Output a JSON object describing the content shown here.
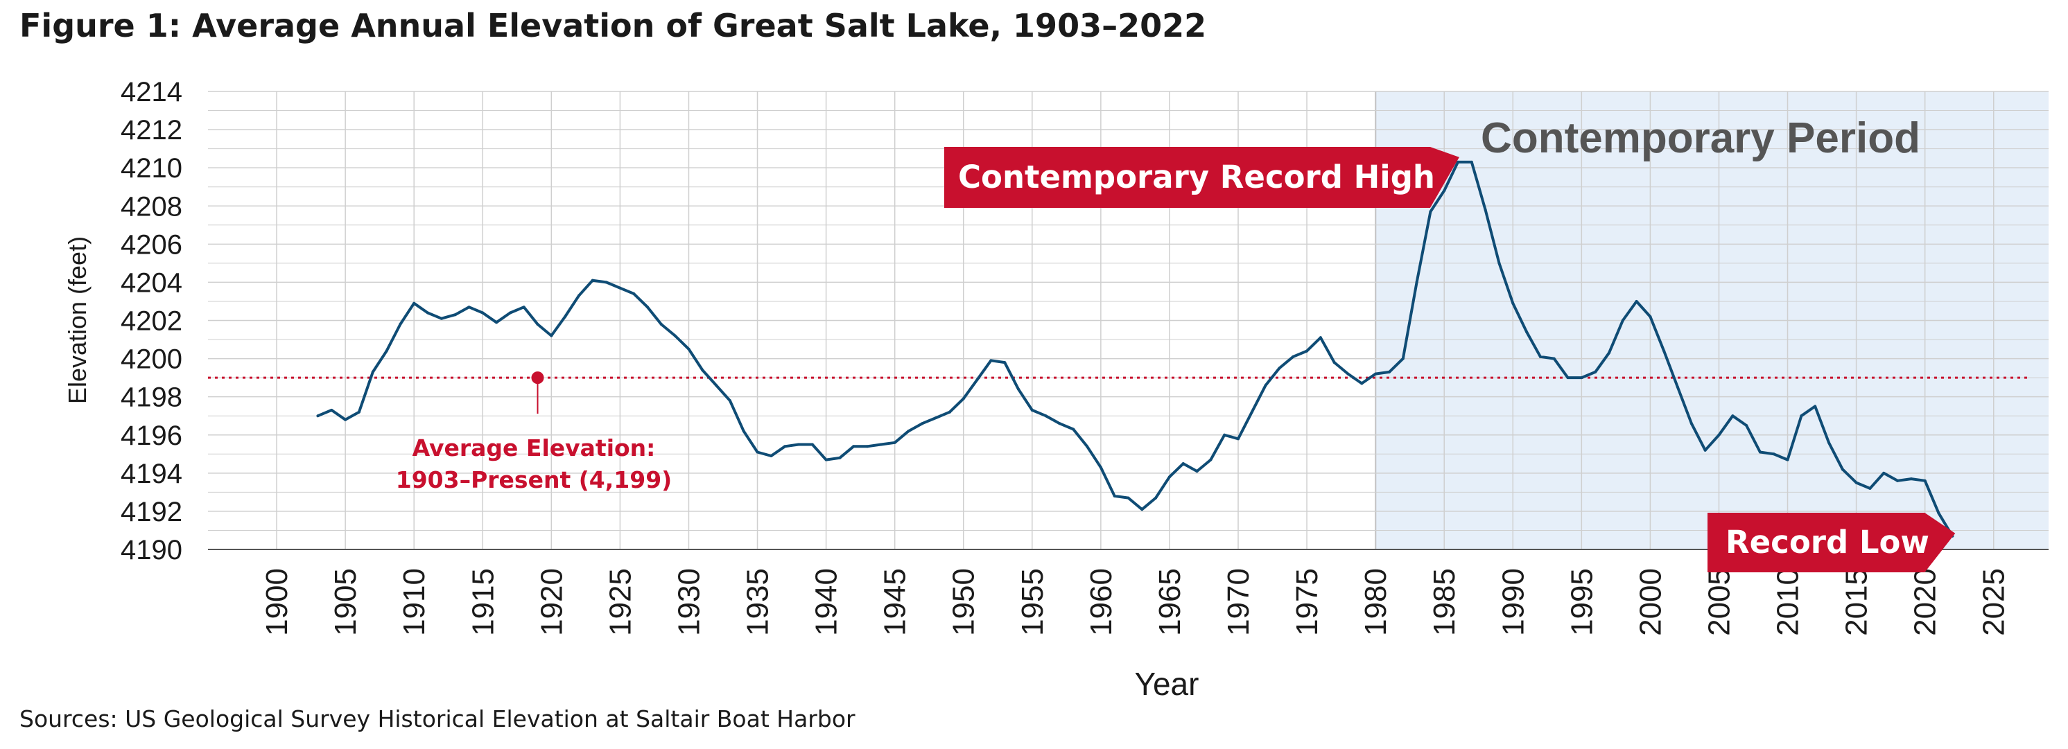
{
  "title": "Figure 1: Average Annual Elevation of Great Salt Lake, 1903–2022",
  "source": "Sources: US Geological Survey Historical Elevation at Saltair Boat Harbor",
  "colors": {
    "line": "#0f4c75",
    "accent": "#c8102e",
    "period_fill": "#e6eff9",
    "period_text": "#555555",
    "grid": "#cfcfcf"
  },
  "chart_data": {
    "type": "line",
    "title": "Figure 1: Average Annual Elevation of Great Salt Lake, 1903–2022",
    "xlabel": "Year",
    "ylabel": "Elevation (feet)",
    "xlim": [
      1895,
      2029
    ],
    "ylim": [
      4190,
      4214
    ],
    "grid": true,
    "x_ticks": [
      1900,
      1905,
      1910,
      1915,
      1920,
      1925,
      1930,
      1935,
      1940,
      1945,
      1950,
      1955,
      1960,
      1965,
      1970,
      1975,
      1980,
      1985,
      1990,
      1995,
      2000,
      2005,
      2010,
      2015,
      2020,
      2025
    ],
    "y_ticks": [
      4190,
      4192,
      4194,
      4196,
      4198,
      4200,
      4202,
      4204,
      4206,
      4208,
      4210,
      4212,
      4214
    ],
    "series": [
      {
        "x": [
          1903,
          1904,
          1905,
          1906,
          1907,
          1908,
          1909,
          1910,
          1911,
          1912,
          1913,
          1914,
          1915,
          1916,
          1917,
          1918,
          1919,
          1920,
          1921,
          1922,
          1923,
          1924,
          1925,
          1926,
          1927,
          1928,
          1929,
          1930,
          1931,
          1932,
          1933,
          1934,
          1935,
          1936,
          1937,
          1938,
          1939,
          1940,
          1941,
          1942,
          1943,
          1944,
          1945,
          1946,
          1947,
          1948,
          1949,
          1950,
          1951,
          1952,
          1953,
          1954,
          1955,
          1956,
          1957,
          1958,
          1959,
          1960,
          1961,
          1962,
          1963,
          1964,
          1965,
          1966,
          1967,
          1968,
          1969,
          1970,
          1971,
          1972,
          1973,
          1974,
          1975,
          1976,
          1977,
          1978,
          1979,
          1980,
          1981,
          1982,
          1983,
          1984,
          1985,
          1986,
          1987,
          1988,
          1989,
          1990,
          1991,
          1992,
          1993,
          1994,
          1995,
          1996,
          1997,
          1998,
          1999,
          2000,
          2001,
          2002,
          2003,
          2004,
          2005,
          2006,
          2007,
          2008,
          2009,
          2010,
          2011,
          2012,
          2013,
          2014,
          2015,
          2016,
          2017,
          2018,
          2019,
          2020,
          2021,
          2022
        ],
        "values": [
          4197.0,
          4197.3,
          4196.8,
          4197.2,
          4199.3,
          4200.4,
          4201.8,
          4202.9,
          4202.4,
          4202.1,
          4202.3,
          4202.7,
          4202.4,
          4201.9,
          4202.4,
          4202.7,
          4201.8,
          4201.2,
          4202.2,
          4203.3,
          4204.1,
          4204.0,
          4203.7,
          4203.4,
          4202.7,
          4201.8,
          4201.2,
          4200.5,
          4199.4,
          4198.6,
          4197.8,
          4196.2,
          4195.1,
          4194.9,
          4195.4,
          4195.5,
          4195.5,
          4194.7,
          4194.8,
          4195.4,
          4195.4,
          4195.5,
          4195.6,
          4196.2,
          4196.6,
          4196.9,
          4197.2,
          4197.9,
          4198.9,
          4199.9,
          4199.8,
          4198.4,
          4197.3,
          4197.0,
          4196.6,
          4196.3,
          4195.4,
          4194.3,
          4192.8,
          4192.7,
          4192.1,
          4192.7,
          4193.8,
          4194.5,
          4194.1,
          4194.7,
          4196.0,
          4195.8,
          4197.2,
          4198.6,
          4199.5,
          4200.1,
          4200.4,
          4201.1,
          4199.8,
          4199.2,
          4198.7,
          4199.2,
          4199.3,
          4200.0,
          4204.0,
          4207.7,
          4208.8,
          4210.3,
          4210.3,
          4207.8,
          4205.0,
          4202.9,
          4201.4,
          4200.1,
          4200.0,
          4199.0,
          4199.0,
          4199.3,
          4200.3,
          4202.0,
          4203.0,
          4202.2,
          4200.4,
          4198.5,
          4196.6,
          4195.2,
          4196.0,
          4197.0,
          4196.5,
          4195.1,
          4195.0,
          4194.7,
          4197.0,
          4197.5,
          4195.6,
          4194.2,
          4193.5,
          4193.2,
          4194.0,
          4193.6,
          4193.7,
          4193.6,
          4191.9,
          4190.7
        ]
      }
    ],
    "reference_line": {
      "value": 4199,
      "label_lines": [
        "Average Elevation:",
        "1903–Present (4,199)"
      ],
      "marker_year": 1919
    },
    "shaded_region": {
      "x_range": [
        1980,
        2029
      ],
      "label": "Contemporary Period"
    },
    "annotations": [
      {
        "text": "Contemporary Record High",
        "x": 1986.5,
        "y": 4210.3
      },
      {
        "text": "Record Low",
        "x": 2022,
        "y": 4190.7
      }
    ]
  }
}
